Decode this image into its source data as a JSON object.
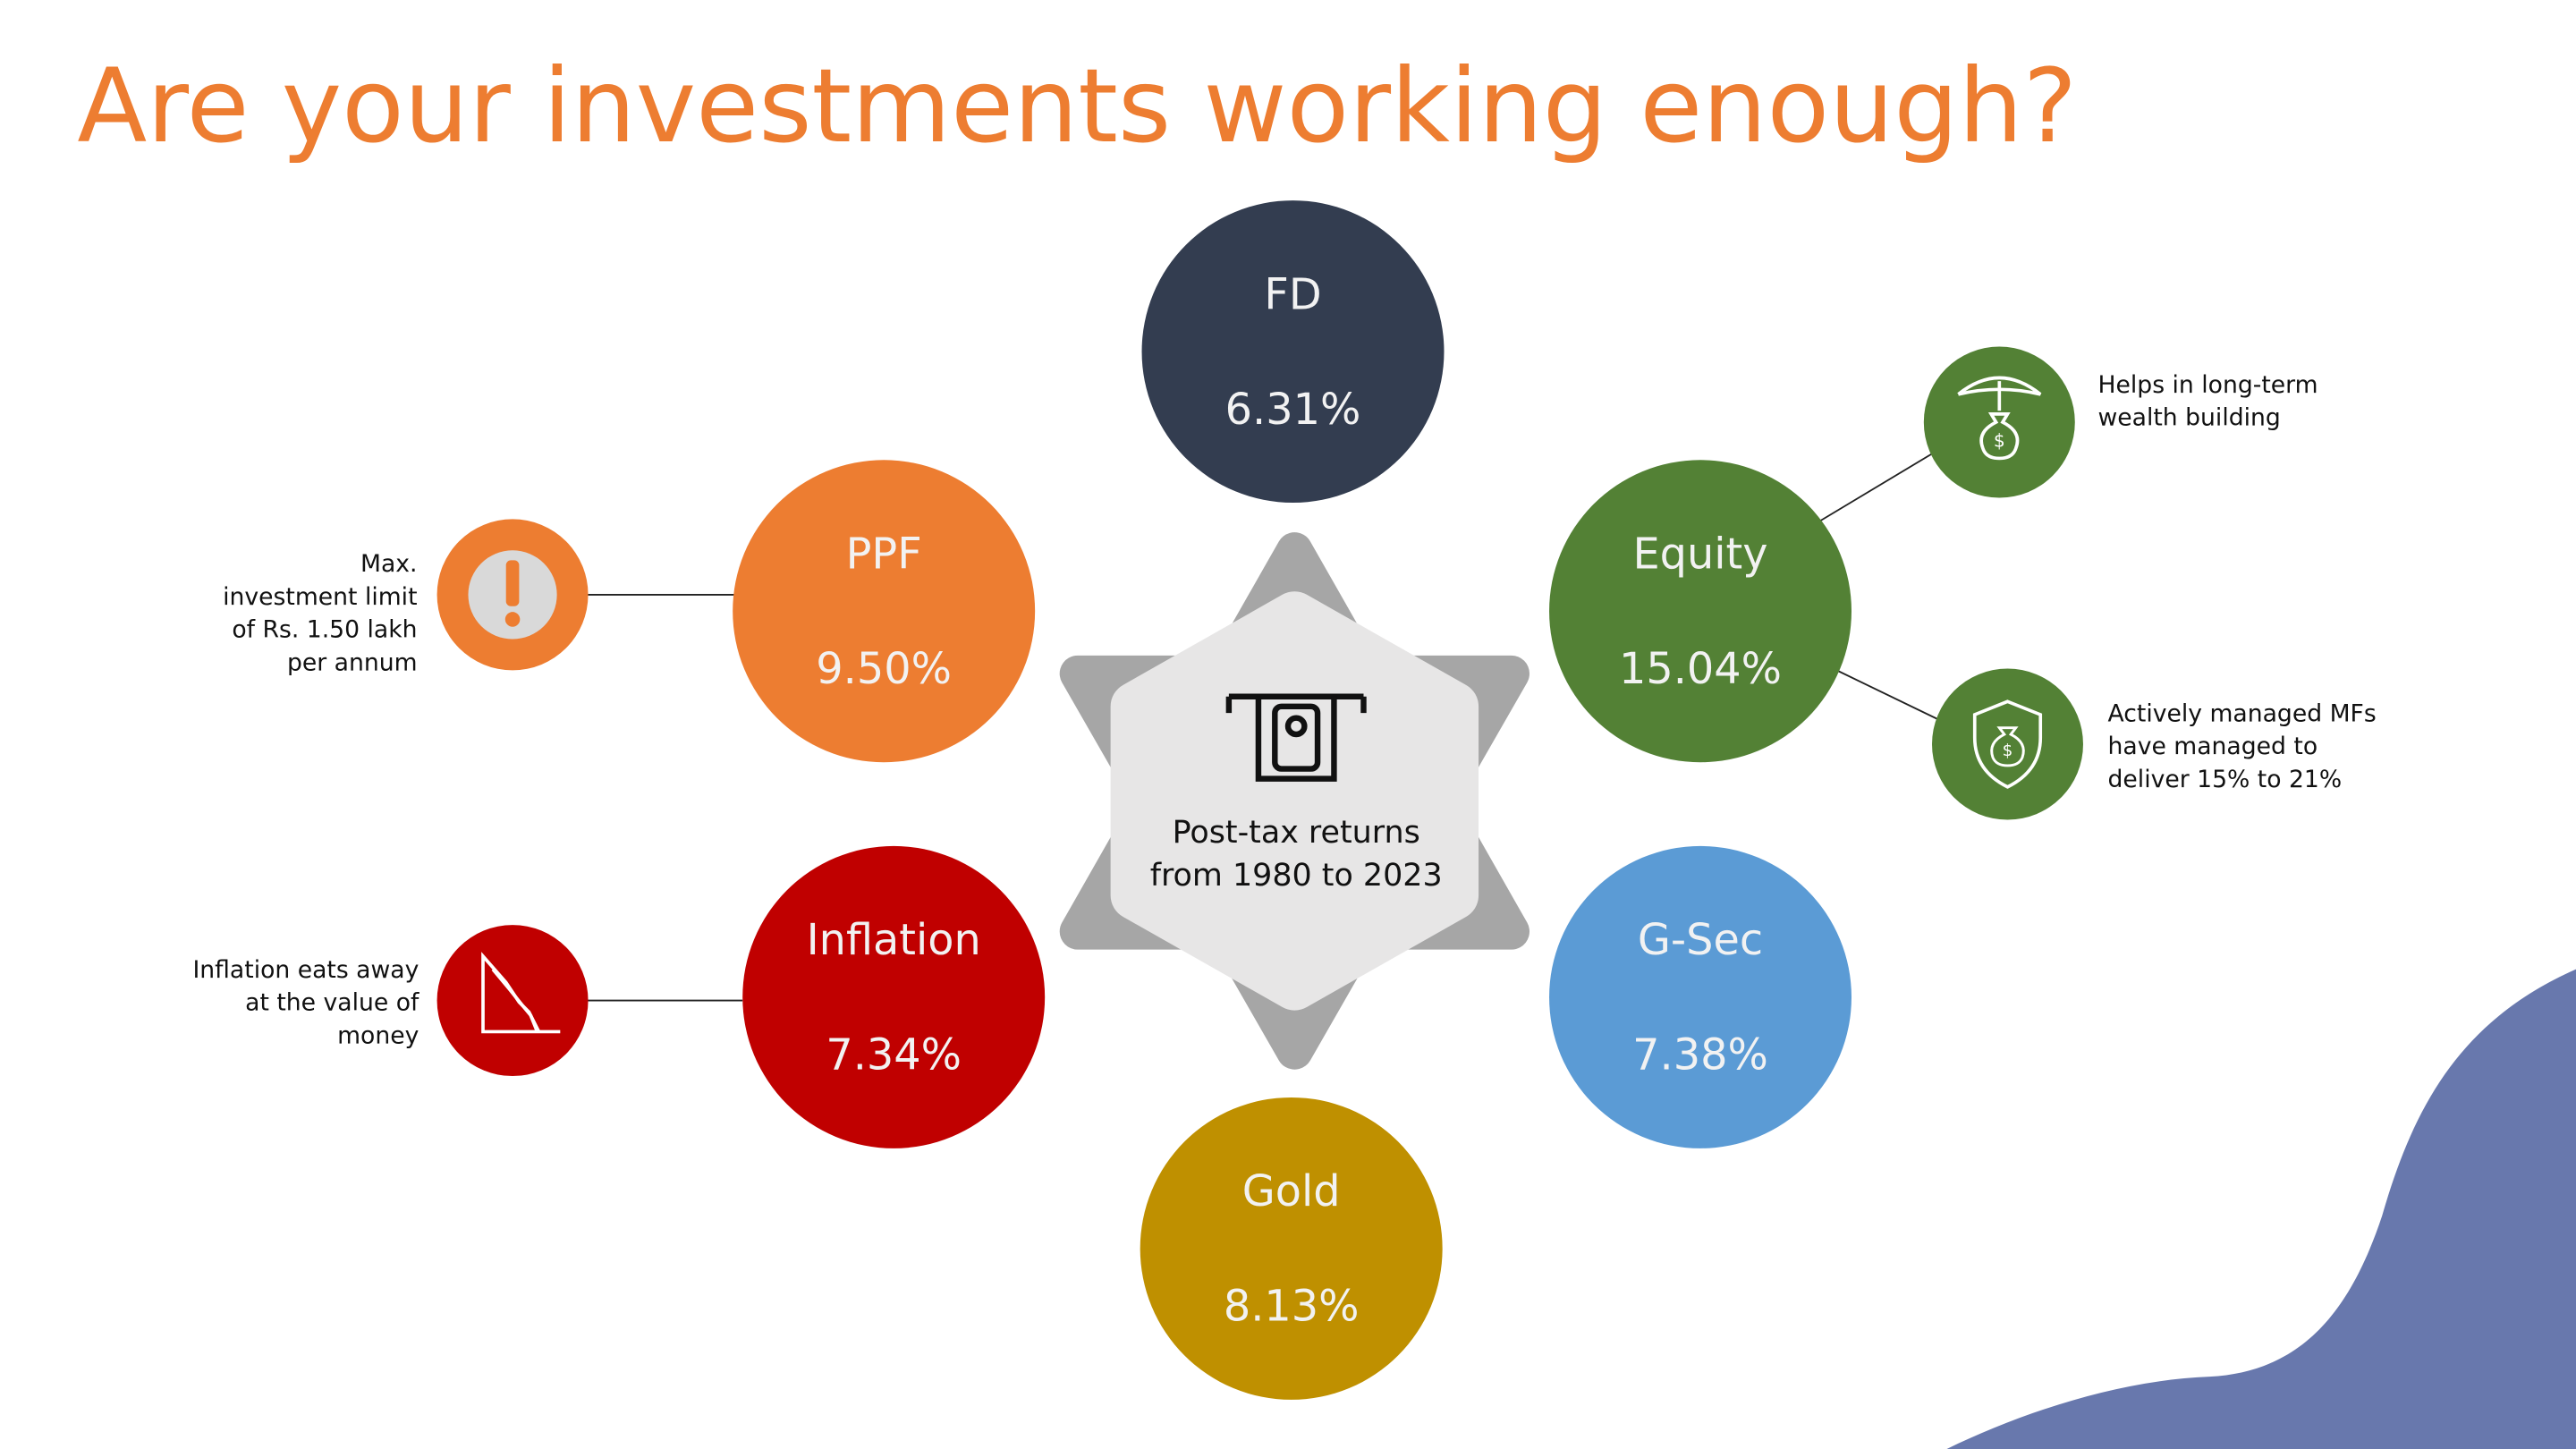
{
  "title": "Are your investments working enough?",
  "center": {
    "lines": [
      "Post-tax returns",
      "from 1980 to 2023"
    ]
  },
  "nodes": [
    {
      "label": "FD",
      "value": "6.31%"
    },
    {
      "label": "PPF",
      "value": "9.50%"
    },
    {
      "label": "Equity",
      "value": "15.04%"
    },
    {
      "label": "Inflation",
      "value": "7.34%"
    },
    {
      "label": "G-Sec",
      "value": "7.38%"
    },
    {
      "label": "Gold",
      "value": "8.13%"
    }
  ],
  "notes": [
    {
      "lines": [
        "Max.",
        "investment limit",
        "of Rs. 1.50 lakh",
        "per annum"
      ]
    },
    {
      "lines": [
        "Helps in long-term",
        "wealth building"
      ]
    },
    {
      "lines": [
        "Actively managed MFs",
        "have managed to",
        "deliver 15% to 21%"
      ]
    },
    {
      "lines": [
        "Inflation eats away",
        "at the value of",
        "money"
      ]
    }
  ]
}
